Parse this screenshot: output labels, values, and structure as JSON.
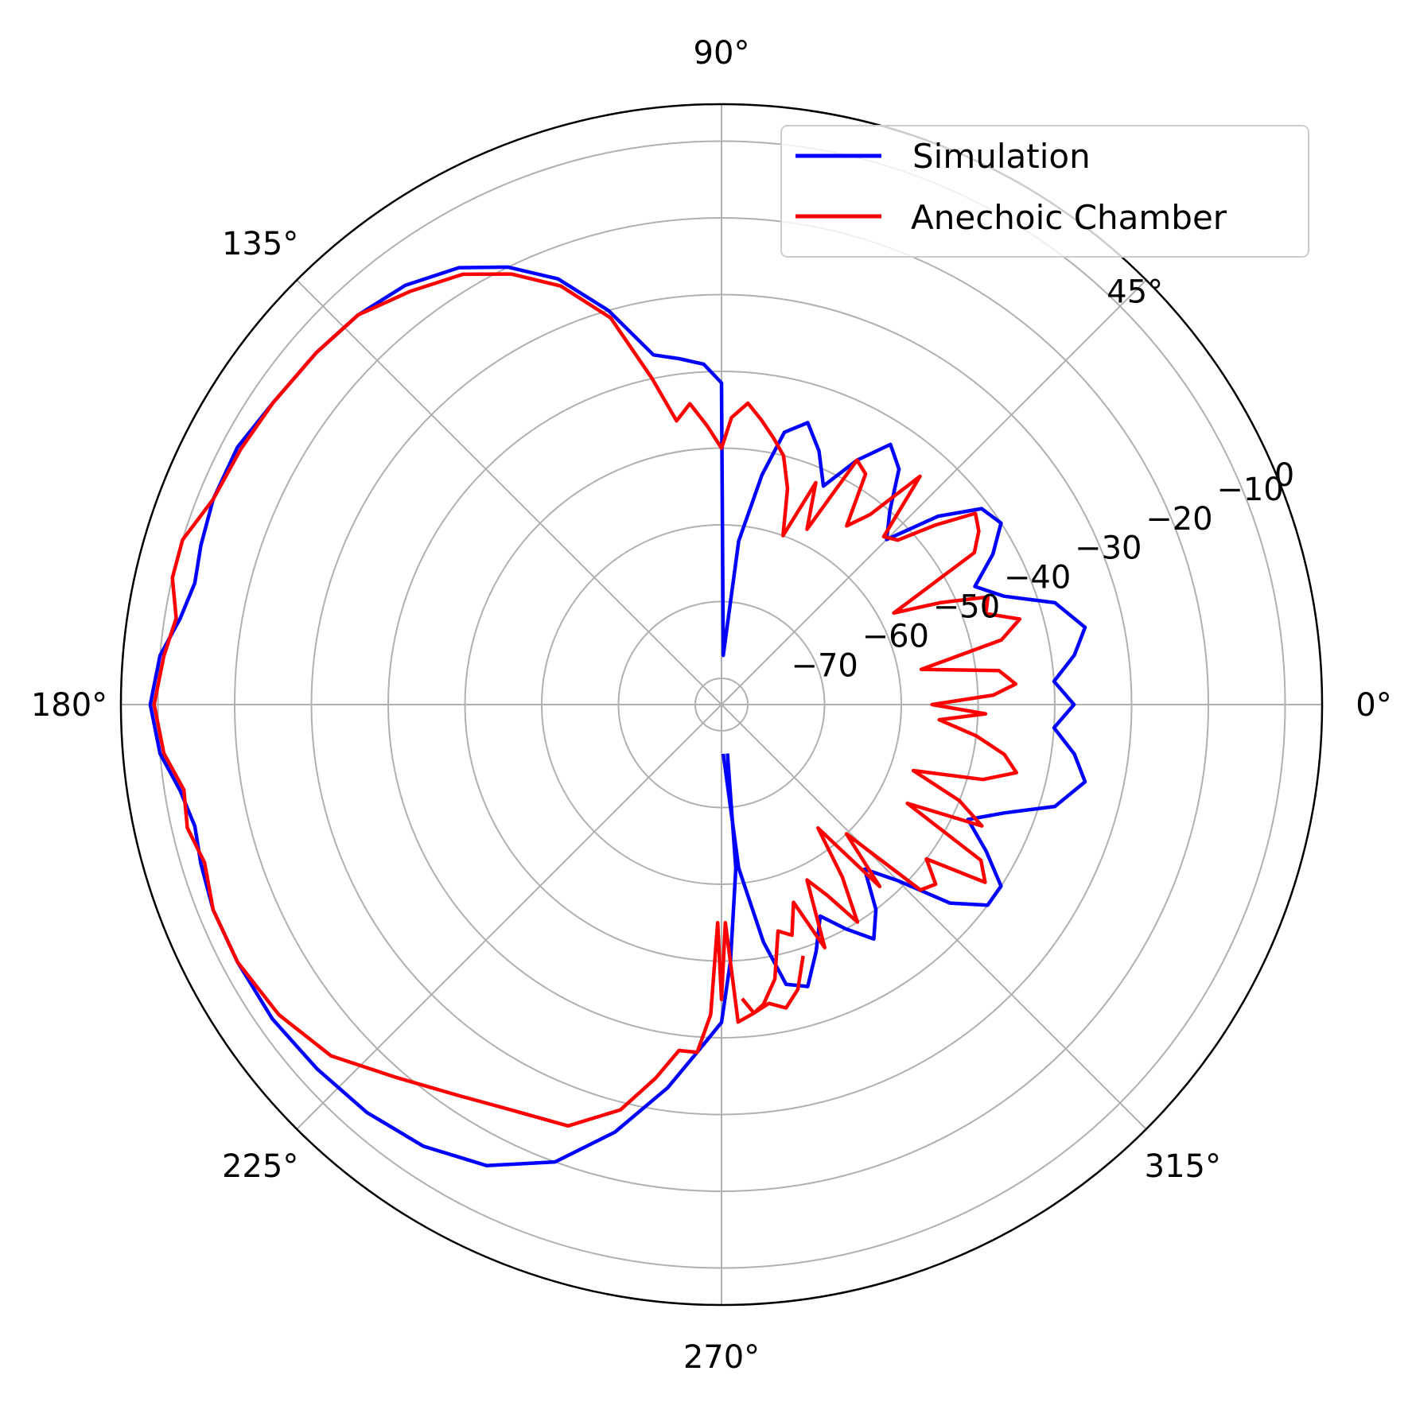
{
  "chart_data": {
    "type": "polar_line",
    "title": "",
    "theta_unit": "degrees",
    "r_unit": "dB",
    "rlim": [
      -84,
      -5
    ],
    "r_ticks": [
      -70,
      -60,
      -50,
      -40,
      -30,
      -20,
      -10,
      0
    ],
    "r_tick_labels": [
      "−70",
      "−60",
      "−50",
      "−40",
      "−30",
      "−20",
      "−10",
      "0"
    ],
    "r_label_angle": 22.5,
    "theta_ticks": [
      0,
      45,
      90,
      135,
      180,
      225,
      270,
      315
    ],
    "theta_tick_labels": [
      "0°",
      "45°",
      "90°",
      "135°",
      "180°",
      "225°",
      "270°",
      "315°"
    ],
    "grid": true,
    "legend_position": "upper right",
    "series": [
      {
        "name": "Simulation",
        "color": "#0000ff",
        "points": [
          [
            -88,
            -77
          ],
          [
            -84,
            -62
          ],
          [
            -80,
            -52
          ],
          [
            -77,
            -46
          ],
          [
            -73,
            -45
          ],
          [
            -69,
            -49
          ],
          [
            -65,
            -53
          ],
          [
            -61,
            -50
          ],
          [
            -57,
            -47
          ],
          [
            -53,
            -50
          ],
          [
            -49,
            -55
          ],
          [
            -45,
            -51
          ],
          [
            -41,
            -44
          ],
          [
            -37,
            -40
          ],
          [
            -33,
            -40
          ],
          [
            -29,
            -44
          ],
          [
            -25,
            -48
          ],
          [
            -21,
            -44
          ],
          [
            -17,
            -38
          ],
          [
            -12,
            -35
          ],
          [
            -8,
            -37
          ],
          [
            -4,
            -40
          ],
          [
            0,
            -37.5
          ],
          [
            4,
            -40
          ],
          [
            8,
            -37
          ],
          [
            12,
            -35
          ],
          [
            17,
            -38
          ],
          [
            21,
            -44
          ],
          [
            25,
            -47
          ],
          [
            29,
            -43
          ],
          [
            33,
            -40
          ],
          [
            37,
            -41
          ],
          [
            41,
            -46
          ],
          [
            45,
            -53
          ],
          [
            49,
            -50
          ],
          [
            53,
            -45
          ],
          [
            57,
            -43
          ],
          [
            61,
            -47
          ],
          [
            65,
            -52
          ],
          [
            69,
            -48
          ],
          [
            73,
            -45
          ],
          [
            77,
            -47
          ],
          [
            80,
            -53
          ],
          [
            84,
            -62
          ],
          [
            88,
            -77
          ],
          [
            90,
            -41.5
          ],
          [
            93,
            -39
          ],
          [
            97,
            -38
          ],
          [
            101,
            -37
          ],
          [
            106,
            -30
          ],
          [
            111,
            -24
          ],
          [
            116,
            -20
          ],
          [
            121,
            -17
          ],
          [
            127,
            -15
          ],
          [
            133,
            -14
          ],
          [
            139,
            -13.5
          ],
          [
            146,
            -13
          ],
          [
            152,
            -12
          ],
          [
            158,
            -12
          ],
          [
            163,
            -12.5
          ],
          [
            167,
            -13
          ],
          [
            171,
            -12
          ],
          [
            175,
            -10
          ],
          [
            180,
            -9
          ],
          [
            185,
            -10
          ],
          [
            189,
            -12
          ],
          [
            193,
            -13
          ],
          [
            197,
            -12.5
          ],
          [
            202,
            -12
          ],
          [
            208,
            -12
          ],
          [
            215,
            -12
          ],
          [
            222,
            -12.5
          ],
          [
            229,
            -13
          ],
          [
            236,
            -14
          ],
          [
            243,
            -16
          ],
          [
            250,
            -20
          ],
          [
            256,
            -26
          ],
          [
            262,
            -33
          ],
          [
            266,
            -38
          ],
          [
            270,
            -42
          ],
          [
            272,
            -50
          ],
          [
            275,
            -62
          ],
          [
            277,
            -77
          ]
        ]
      },
      {
        "name": "Anechoic Chamber",
        "color": "#ff0000",
        "points": [
          [
            -86,
            -45
          ],
          [
            -84,
            -43
          ],
          [
            -82,
            -44
          ],
          [
            -79,
            -47
          ],
          [
            -76,
            -53
          ],
          [
            -73,
            -52
          ],
          [
            -70,
            -56
          ],
          [
            -67,
            -49
          ],
          [
            -64,
            -58
          ],
          [
            -61,
            -55
          ],
          [
            -58,
            -50
          ],
          [
            -55,
            -56
          ],
          [
            -52,
            -63
          ],
          [
            -49,
            -52
          ],
          [
            -46,
            -60
          ],
          [
            -43,
            -48
          ],
          [
            -40,
            -47
          ],
          [
            -37,
            -50
          ],
          [
            -34,
            -42
          ],
          [
            -31,
            -44
          ],
          [
            -28,
            -56
          ],
          [
            -25,
            -46
          ],
          [
            -22,
            -50
          ],
          [
            -19,
            -57
          ],
          [
            -16,
            -48
          ],
          [
            -13,
            -44
          ],
          [
            -10,
            -46
          ],
          [
            -7,
            -50
          ],
          [
            -4,
            -55
          ],
          [
            -2,
            -49
          ],
          [
            0,
            -56
          ],
          [
            2,
            -48
          ],
          [
            4,
            -45
          ],
          [
            7,
            -47
          ],
          [
            10,
            -57
          ],
          [
            13,
            -46
          ],
          [
            16,
            -43
          ],
          [
            19,
            -47
          ],
          [
            22,
            -46
          ],
          [
            25,
            -52
          ],
          [
            28,
            -58
          ],
          [
            31,
            -45
          ],
          [
            34,
            -43
          ],
          [
            37,
            -42
          ],
          [
            40,
            -47
          ],
          [
            43,
            -52
          ],
          [
            46,
            -53
          ],
          [
            49,
            -44
          ],
          [
            52,
            -52
          ],
          [
            55,
            -55
          ],
          [
            58,
            -48
          ],
          [
            61,
            -47
          ],
          [
            64,
            -58
          ],
          [
            67,
            -52
          ],
          [
            70,
            -60
          ],
          [
            73,
            -54
          ],
          [
            76,
            -50
          ],
          [
            79,
            -48
          ],
          [
            82,
            -46
          ],
          [
            85,
            -44
          ],
          [
            88,
            -46
          ],
          [
            90,
            -50
          ],
          [
            93,
            -47
          ],
          [
            96,
            -44
          ],
          [
            99,
            -46
          ],
          [
            102,
            -40
          ],
          [
            106,
            -31
          ],
          [
            111,
            -25
          ],
          [
            116,
            -21
          ],
          [
            121,
            -18
          ],
          [
            127,
            -16
          ],
          [
            133,
            -14
          ],
          [
            139,
            -13.5
          ],
          [
            146,
            -13
          ],
          [
            152,
            -12.5
          ],
          [
            158,
            -12
          ],
          [
            163,
            -10
          ],
          [
            167,
            -10
          ],
          [
            171,
            -11.5
          ],
          [
            175,
            -10.5
          ],
          [
            180,
            -9.5
          ],
          [
            185,
            -10.5
          ],
          [
            189,
            -12.5
          ],
          [
            193,
            -12
          ],
          [
            197,
            -13
          ],
          [
            202,
            -12
          ],
          [
            208,
            -12
          ],
          [
            215,
            -13
          ],
          [
            222,
            -15
          ],
          [
            229,
            -19
          ],
          [
            236,
            -22
          ],
          [
            243,
            -24
          ],
          [
            250,
            -25
          ],
          [
            256,
            -29
          ],
          [
            260,
            -34
          ],
          [
            263,
            -38
          ],
          [
            266,
            -38
          ],
          [
            268,
            -43
          ],
          [
            269,
            -55
          ],
          [
            270,
            -45
          ],
          [
            271,
            -55
          ],
          [
            273,
            -42
          ],
          [
            276,
            -43
          ],
          [
            279,
            -44
          ],
          [
            282,
            -43
          ],
          [
            285,
            -45
          ],
          [
            288,
            -49
          ]
        ]
      }
    ]
  },
  "legend": {
    "items": [
      {
        "label": "Simulation",
        "color": "#0000ff"
      },
      {
        "label": "Anechoic Chamber",
        "color": "#ff0000"
      }
    ]
  }
}
